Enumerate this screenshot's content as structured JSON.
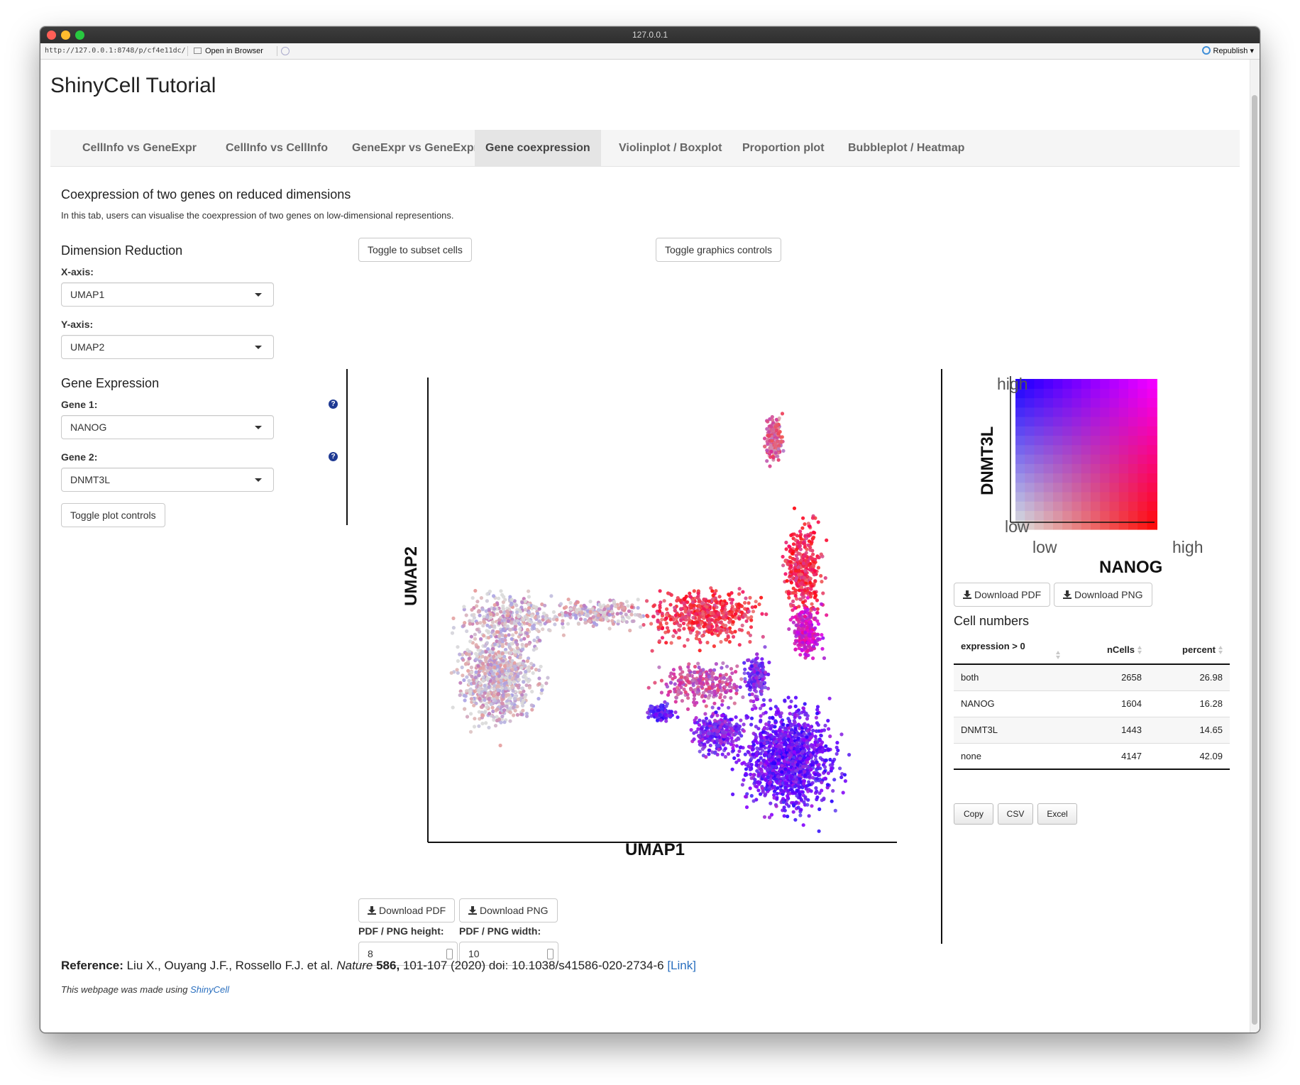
{
  "window": {
    "title": "127.0.0.1"
  },
  "rstudio_bar": {
    "url": "http://127.0.0.1:8748/p/cf4e11dc/",
    "open_in_browser": "Open in Browser",
    "republish": "Republish"
  },
  "app": {
    "title": "ShinyCell Tutorial"
  },
  "nav": {
    "tabs": [
      {
        "label": "CellInfo vs GeneExpr",
        "active": false
      },
      {
        "label": "CellInfo vs CellInfo",
        "active": false
      },
      {
        "label": "GeneExpr vs GeneExpr",
        "active": false
      },
      {
        "label": "Gene coexpression",
        "active": true
      },
      {
        "label": "Violinplot / Boxplot",
        "active": false
      },
      {
        "label": "Proportion plot",
        "active": false
      },
      {
        "label": "Bubbleplot / Heatmap",
        "active": false
      }
    ]
  },
  "tab": {
    "heading": "Coexpression of two genes on reduced dimensions",
    "description": "In this tab, users can visualise the coexpression of two genes on low-dimensional representions."
  },
  "dim_reduction": {
    "heading": "Dimension Reduction",
    "x_label": "X-axis:",
    "x_value": "UMAP1",
    "y_label": "Y-axis:",
    "y_value": "UMAP2"
  },
  "buttons": {
    "toggle_subset": "Toggle to subset cells",
    "toggle_graphics": "Toggle graphics controls",
    "toggle_plot": "Toggle plot controls",
    "download_pdf": "Download PDF",
    "download_png": "Download PNG"
  },
  "gene_expression": {
    "heading": "Gene Expression",
    "gene1_label": "Gene 1:",
    "gene1_value": "NANOG",
    "gene2_label": "Gene 2:",
    "gene2_value": "DNMT3L",
    "help_glyph": "?"
  },
  "plot": {
    "xlabel": "UMAP1",
    "ylabel": "UMAP2",
    "height_label": "PDF / PNG height:",
    "height_value": "8",
    "width_label": "PDF / PNG width:",
    "width_value": "10"
  },
  "legend": {
    "high_y": "high",
    "low_y": "low",
    "low_x": "low",
    "high_x": "high",
    "ylabel": "DNMT3L",
    "xlabel": "NANOG",
    "colors": {
      "low": "#d9d9d9",
      "x_high": "#ff0000",
      "y_high": "#2200ff",
      "both_high": "#ff00ff"
    }
  },
  "cell_numbers": {
    "heading": "Cell numbers",
    "columns": [
      "expression > 0",
      "nCells",
      "percent"
    ],
    "rows": [
      [
        "both",
        "2658",
        "26.98"
      ],
      [
        "NANOG",
        "1604",
        "16.28"
      ],
      [
        "DNMT3L",
        "1443",
        "14.65"
      ],
      [
        "none",
        "4147",
        "42.09"
      ]
    ],
    "buttons": [
      "Copy",
      "CSV",
      "Excel"
    ]
  },
  "reference": {
    "label": "Reference:",
    "authors": " Liu X., Ouyang J.F., Rossello F.J. et al. ",
    "journal": "Nature",
    "volume": " 586,",
    "rest": " 101-107 (2020) doi: 10.1038/s41586-020-2734-6 ",
    "link": "[Link]"
  },
  "footer": {
    "text": "This webpage was made using ",
    "link": "ShinyCell"
  }
}
